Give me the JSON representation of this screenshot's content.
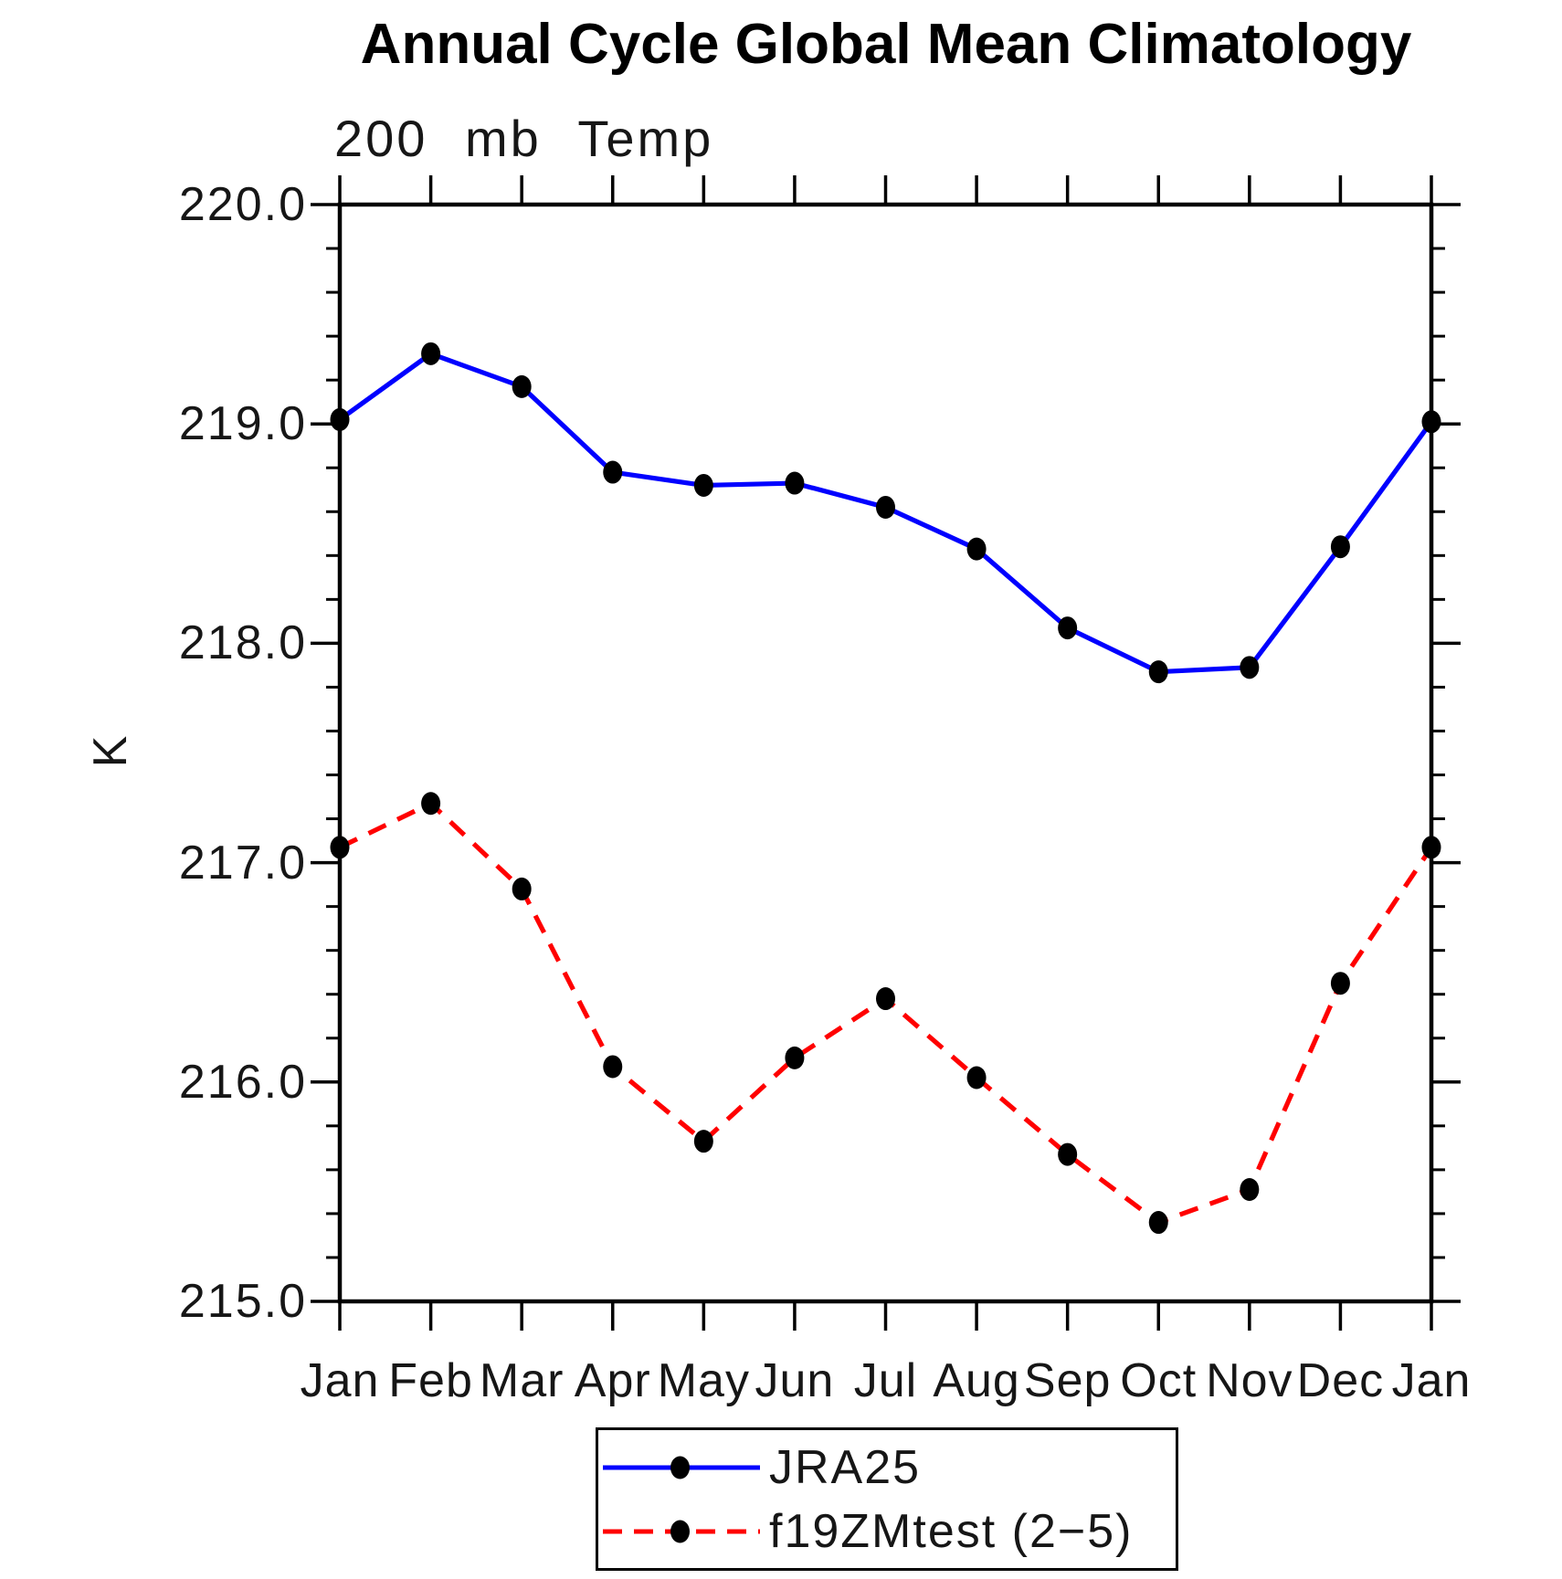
{
  "title": "Annual Cycle Global Mean Climatology",
  "subtitle": "200 mb Temp",
  "y_axis": {
    "label": "K",
    "min": 215.0,
    "max": 220.0,
    "major_step": 1.0,
    "minor_step": 0.2,
    "tick_labels": [
      "220.0",
      "219.0",
      "218.0",
      "217.0",
      "216.0",
      "215.0"
    ]
  },
  "x_axis": {
    "categories": [
      "Jan",
      "Feb",
      "Mar",
      "Apr",
      "May",
      "Jun",
      "Jul",
      "Aug",
      "Sep",
      "Oct",
      "Nov",
      "Dec",
      "Jan"
    ]
  },
  "legend": {
    "entries": [
      {
        "label": "JRA25",
        "color": "#0000FF",
        "style": "solid"
      },
      {
        "label": "f19ZMtest (2−5)",
        "color": "#FF0000",
        "style": "dashed"
      }
    ]
  },
  "chart_data": {
    "type": "line",
    "title": "Annual Cycle Global Mean Climatology",
    "subtitle": "200 mb Temp",
    "ylabel": "K",
    "ylim": [
      215.0,
      220.0
    ],
    "grid": false,
    "legend_position": "bottom-center",
    "categories": [
      "Jan",
      "Feb",
      "Mar",
      "Apr",
      "May",
      "Jun",
      "Jul",
      "Aug",
      "Sep",
      "Oct",
      "Nov",
      "Dec",
      "Jan"
    ],
    "series": [
      {
        "name": "JRA25",
        "color": "#0000FF",
        "line_style": "solid",
        "marker": "filled-circle",
        "marker_color": "#000000",
        "values": [
          219.02,
          219.32,
          219.17,
          218.78,
          218.72,
          218.73,
          218.62,
          218.43,
          218.07,
          217.87,
          217.89,
          218.44,
          219.01
        ]
      },
      {
        "name": "f19ZMtest (2−5)",
        "color": "#FF0000",
        "line_style": "dashed",
        "marker": "filled-circle",
        "marker_color": "#000000",
        "values": [
          217.07,
          217.27,
          216.88,
          216.07,
          215.73,
          216.11,
          216.38,
          216.02,
          215.67,
          215.36,
          215.51,
          216.45,
          217.07
        ]
      }
    ]
  }
}
